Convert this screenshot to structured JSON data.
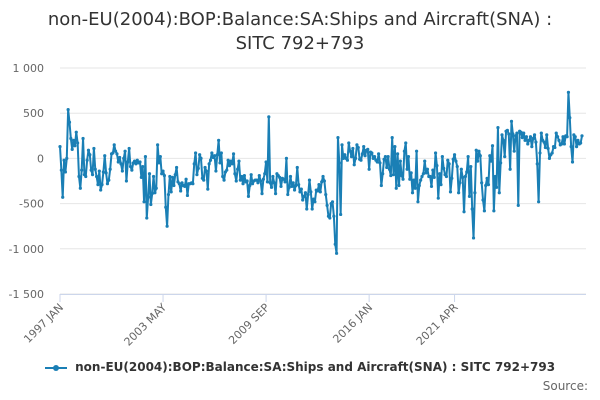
{
  "chart_data": {
    "type": "line",
    "title_lines": [
      "non-EU(2004):BOP:Balance:SA:Ships and Aircraft(SNA) :",
      "SITC 792+793"
    ],
    "xlabel": "",
    "ylabel": "",
    "ylim": [
      -1500,
      1000
    ],
    "y_ticks": [
      1000,
      500,
      0,
      -500,
      -1000,
      -1500
    ],
    "y_tick_labels": [
      "1 000",
      "500",
      "0",
      "-500",
      "-1 000",
      "-1 500"
    ],
    "x_tick_labels": [
      "1997 JAN",
      "2003 MAY",
      "2009 SEP",
      "2016 JAN",
      "2021 APR"
    ],
    "x_tick_index": [
      0,
      76,
      152,
      228,
      291
    ],
    "grid": true,
    "legend_position": "bottom",
    "color": "#1a7fb5",
    "series": [
      {
        "name": "non-EU(2004):BOP:Balance:SA:Ships and Aircraft(SNA) : SITC 792+793",
        "values": [
          130,
          -130,
          -430,
          -20,
          -150,
          0,
          540,
          400,
          220,
          100,
          200,
          140,
          290,
          170,
          -200,
          -330,
          -130,
          220,
          -180,
          -200,
          -20,
          90,
          40,
          -130,
          -180,
          110,
          -120,
          -200,
          -290,
          -140,
          -350,
          -290,
          -150,
          30,
          -160,
          -280,
          -240,
          -120,
          50,
          60,
          150,
          80,
          50,
          -40,
          10,
          -60,
          -140,
          0,
          80,
          -250,
          -40,
          110,
          -90,
          -130,
          -50,
          -30,
          -60,
          -20,
          -50,
          -40,
          -210,
          -90,
          -480,
          20,
          -660,
          -430,
          -170,
          -510,
          -390,
          -200,
          -380,
          -330,
          150,
          -50,
          20,
          -170,
          -140,
          -190,
          -540,
          -750,
          -400,
          -200,
          -370,
          -210,
          -300,
          -180,
          -100,
          -260,
          -280,
          -360,
          -270,
          -300,
          -310,
          -230,
          -410,
          -280,
          -280,
          -270,
          -280,
          -60,
          60,
          -180,
          -110,
          40,
          0,
          -220,
          -240,
          -100,
          -140,
          -340,
          -60,
          -20,
          60,
          10,
          30,
          -140,
          40,
          200,
          -50,
          60,
          -200,
          -240,
          -150,
          -130,
          -20,
          -80,
          -30,
          -60,
          50,
          -170,
          -250,
          -120,
          -30,
          -240,
          -200,
          -280,
          -190,
          -260,
          -250,
          -420,
          -300,
          -180,
          -280,
          -250,
          -240,
          -240,
          -270,
          -190,
          -250,
          -390,
          -230,
          -170,
          -40,
          -260,
          460,
          -270,
          -320,
          -200,
          -270,
          -390,
          -170,
          -190,
          -210,
          -310,
          -220,
          -230,
          -260,
          0,
          -400,
          -320,
          -200,
          -310,
          -270,
          -350,
          -300,
          -100,
          -290,
          -370,
          -340,
          -460,
          -420,
          -380,
          -560,
          -400,
          -240,
          -370,
          -560,
          -450,
          -480,
          -350,
          -360,
          -290,
          -370,
          -260,
          -200,
          -250,
          -400,
          -520,
          -640,
          -660,
          -500,
          -480,
          -640,
          -950,
          -1050,
          230,
          -50,
          -620,
          150,
          0,
          40,
          0,
          -20,
          170,
          80,
          20,
          110,
          -70,
          0,
          150,
          120,
          -10,
          -20,
          50,
          130,
          30,
          90,
          100,
          -120,
          70,
          60,
          0,
          20,
          -20,
          -40,
          50,
          -50,
          -300,
          -170,
          -10,
          20,
          -100,
          20,
          -120,
          -190,
          230,
          -180,
          130,
          -330,
          50,
          -300,
          -30,
          -190,
          -230,
          80,
          170,
          -120,
          20,
          -230,
          -160,
          -380,
          -240,
          -330,
          80,
          -480,
          -300,
          -240,
          -200,
          -170,
          -30,
          -160,
          -120,
          -200,
          -200,
          -310,
          -130,
          -210,
          60,
          -80,
          -440,
          -170,
          -290,
          20,
          -110,
          -180,
          -200,
          -20,
          -60,
          -370,
          -220,
          -10,
          40,
          -30,
          -90,
          -380,
          -270,
          -120,
          -210,
          -590,
          -200,
          -150,
          20,
          -420,
          -90,
          -560,
          -880,
          -380,
          90,
          -30,
          80,
          30,
          -270,
          -460,
          -580,
          -300,
          -220,
          -290,
          30,
          -30,
          140,
          -580,
          -200,
          -320,
          340,
          -380,
          -50,
          260,
          200,
          20,
          300,
          310,
          270,
          -120,
          410,
          270,
          80,
          250,
          280,
          -520,
          300,
          290,
          230,
          280,
          200,
          240,
          160,
          200,
          240,
          130,
          220,
          260,
          180,
          -60,
          -480,
          60,
          280,
          200,
          180,
          120,
          260,
          110,
          0,
          40,
          60,
          130,
          120,
          280,
          240,
          200,
          150,
          160,
          240,
          160,
          250,
          240,
          730,
          450,
          130,
          -40,
          260,
          240,
          130,
          200,
          160,
          170,
          250
        ]
      }
    ]
  },
  "source_label": "Source:"
}
